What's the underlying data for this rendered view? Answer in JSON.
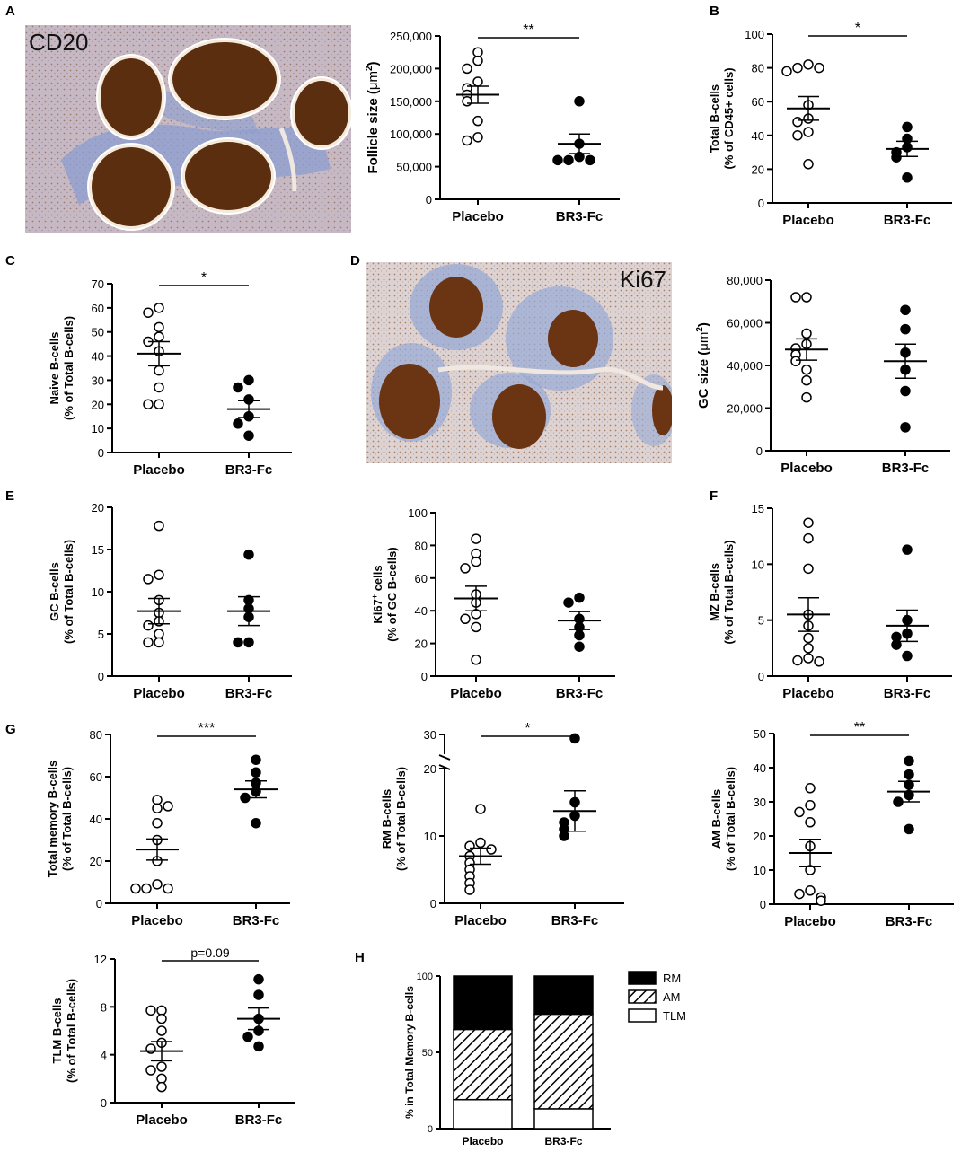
{
  "panel_labels": [
    "A",
    "B",
    "C",
    "D",
    "E",
    "F",
    "G",
    "H"
  ],
  "images": {
    "cd20": {
      "label": "CD20",
      "colors": {
        "background": "#c7b9c4",
        "stain": "#5a2e0e",
        "rim": "#f4eadc",
        "zone": "#8b9ed0"
      }
    },
    "ki67": {
      "label": "Ki67",
      "colors": {
        "background": "#ddd3d2",
        "stain": "#6b3412",
        "rim": "#f4eadc",
        "zone": "#97aad6"
      }
    }
  },
  "chart_data": [
    {
      "id": "follicle",
      "type": "scatter",
      "ylabel_main": "Follicle size (",
      "ylabel_unit": "μm",
      "ylabel_sup": "2",
      "ylabel_end": ")",
      "ylim": [
        0,
        250000
      ],
      "yticks": [
        "0",
        "50,000",
        "100,000",
        "150,000",
        "200,000",
        "250,000"
      ],
      "categories": [
        "Placebo",
        "BR3-Fc"
      ],
      "groups": [
        {
          "values": [
            225000,
            212000,
            200000,
            180000,
            170000,
            160000,
            150000,
            120000,
            95000,
            90000
          ],
          "mean": 160000,
          "sem": 13000,
          "marker": "open"
        },
        {
          "values": [
            150000,
            85000,
            65000,
            60000,
            60000,
            60000
          ],
          "mean": 85000,
          "sem": 15000,
          "marker": "filled"
        }
      ],
      "significance": "**"
    },
    {
      "id": "total-b",
      "type": "scatter",
      "ylabel_lines": [
        "Total B-cells",
        "(% of CD45+ cells)"
      ],
      "ylim": [
        0,
        100
      ],
      "yticks": [
        "0",
        "20",
        "40",
        "60",
        "80",
        "100"
      ],
      "categories": [
        "Placebo",
        "BR3-Fc"
      ],
      "groups": [
        {
          "values": [
            82,
            80,
            80,
            78,
            58,
            50,
            48,
            42,
            40,
            23
          ],
          "mean": 56,
          "sem": 7,
          "marker": "open"
        },
        {
          "values": [
            45,
            38,
            33,
            30,
            27,
            15
          ],
          "mean": 32,
          "sem": 4.5,
          "marker": "filled"
        }
      ],
      "significance": "*"
    },
    {
      "id": "naive-b",
      "type": "scatter",
      "ylabel_lines": [
        "Naive B-cells",
        "(% of Total B-cells)"
      ],
      "ylim": [
        0,
        70
      ],
      "yticks": [
        "0",
        "10",
        "20",
        "30",
        "40",
        "50",
        "60",
        "70"
      ],
      "categories": [
        "Placebo",
        "BR3-Fc"
      ],
      "groups": [
        {
          "values": [
            60,
            58,
            52,
            48,
            46,
            42,
            34,
            27,
            20,
            20
          ],
          "mean": 41,
          "sem": 5,
          "marker": "open"
        },
        {
          "values": [
            30,
            27,
            22,
            15,
            12,
            7
          ],
          "mean": 18,
          "sem": 3.5,
          "marker": "filled"
        }
      ],
      "significance": "*"
    },
    {
      "id": "gc-size",
      "type": "scatter",
      "ylabel_main": "GC size  (",
      "ylabel_unit": "μm",
      "ylabel_sup": "2",
      "ylabel_end": ")",
      "ylim": [
        0,
        80000
      ],
      "yticks": [
        "0",
        "20,000",
        "40,000",
        "60,000",
        "80,000"
      ],
      "categories": [
        "Placebo",
        "BR3-Fc"
      ],
      "groups": [
        {
          "values": [
            72000,
            72000,
            55000,
            50000,
            48000,
            45000,
            42000,
            38000,
            33000,
            25000
          ],
          "mean": 47500,
          "sem": 5000,
          "marker": "open"
        },
        {
          "values": [
            66000,
            57000,
            46000,
            38000,
            28000,
            11000
          ],
          "mean": 42000,
          "sem": 8000,
          "marker": "filled"
        }
      ],
      "significance": ""
    },
    {
      "id": "gc-b",
      "type": "scatter",
      "ylabel_lines": [
        "GC B-cells",
        "(% of Total B-cells)"
      ],
      "ylim": [
        0,
        20
      ],
      "yticks": [
        "0",
        "5",
        "10",
        "15",
        "20"
      ],
      "categories": [
        "Placebo",
        "BR3-Fc"
      ],
      "groups": [
        {
          "values": [
            17.8,
            12,
            11.5,
            9,
            7.5,
            6.5,
            6,
            5,
            4,
            4
          ],
          "mean": 7.7,
          "sem": 1.5,
          "marker": "open"
        },
        {
          "values": [
            14.4,
            9,
            8,
            7,
            4,
            4
          ],
          "mean": 7.7,
          "sem": 1.7,
          "marker": "filled"
        }
      ],
      "significance": ""
    },
    {
      "id": "ki67-cells",
      "type": "scatter",
      "ylabel_main": "Ki67",
      "ylabel_sup": "+",
      "ylabel_end": " cells",
      "ylabel_line2": "(% of GC B-cells)",
      "ylim": [
        0,
        100
      ],
      "yticks": [
        "0",
        "20",
        "40",
        "60",
        "80",
        "100"
      ],
      "categories": [
        "Placebo",
        "BR3-Fc"
      ],
      "groups": [
        {
          "values": [
            84,
            75,
            70,
            66,
            50,
            45,
            38,
            35,
            30,
            10
          ],
          "mean": 47.5,
          "sem": 7.5,
          "marker": "open"
        },
        {
          "values": [
            48,
            45,
            35,
            30,
            25,
            18
          ],
          "mean": 34,
          "sem": 5.5,
          "marker": "filled"
        }
      ],
      "significance": ""
    },
    {
      "id": "mz-b",
      "type": "scatter",
      "ylabel_lines": [
        "MZ B-cells",
        "(% of Total B-cells)"
      ],
      "ylim": [
        0,
        15
      ],
      "yticks": [
        "0",
        "5",
        "10",
        "15"
      ],
      "categories": [
        "Placebo",
        "BR3-Fc"
      ],
      "groups": [
        {
          "values": [
            13.7,
            12.3,
            9.6,
            5.5,
            4.5,
            3.4,
            2.5,
            1.6,
            1.4,
            1.3
          ],
          "mean": 5.5,
          "sem": 1.5,
          "marker": "open"
        },
        {
          "values": [
            11.3,
            5,
            3.8,
            3.5,
            2.8,
            1.8
          ],
          "mean": 4.5,
          "sem": 1.4,
          "marker": "filled"
        }
      ],
      "significance": ""
    },
    {
      "id": "total-memory",
      "type": "scatter",
      "ylabel_lines": [
        "Total memory B-cells",
        "(% of Total B-cells)"
      ],
      "ylim": [
        0,
        80
      ],
      "yticks": [
        "0",
        "20",
        "40",
        "60",
        "80"
      ],
      "categories": [
        "Placebo",
        "BR3-Fc"
      ],
      "groups": [
        {
          "values": [
            49,
            45,
            46,
            38,
            30,
            20,
            9,
            7,
            7,
            7
          ],
          "mean": 25.5,
          "sem": 5,
          "marker": "open"
        },
        {
          "values": [
            68,
            62,
            57,
            53,
            50,
            38
          ],
          "mean": 54,
          "sem": 4,
          "marker": "filled"
        }
      ],
      "significance": "***"
    },
    {
      "id": "rm-b",
      "type": "scatter",
      "ylabel_lines": [
        "RM B-cells",
        "(% of Total B-cells)"
      ],
      "y_broken": true,
      "ylim_low": [
        0,
        20
      ],
      "ylim_high": [
        20,
        30
      ],
      "yticks_low": [
        "0",
        "10",
        "20"
      ],
      "ytick_high": "30",
      "categories": [
        "Placebo",
        "BR3-Fc"
      ],
      "groups": [
        {
          "values": [
            14,
            9,
            8.5,
            8,
            7,
            6,
            5,
            4,
            3,
            2
          ],
          "mean": 7,
          "sem": 1.2,
          "marker": "open"
        },
        {
          "values": [
            28,
            15,
            13,
            12,
            11,
            10
          ],
          "mean": 13.7,
          "sem": 3,
          "marker": "filled"
        }
      ],
      "significance": "*"
    },
    {
      "id": "am-b",
      "type": "scatter",
      "ylabel_lines": [
        "AM B-cells",
        "(% of Total B-cells)"
      ],
      "ylim": [
        0,
        50
      ],
      "yticks": [
        "0",
        "10",
        "20",
        "30",
        "40",
        "50"
      ],
      "categories": [
        "Placebo",
        "BR3-Fc"
      ],
      "groups": [
        {
          "values": [
            34,
            29,
            27,
            24,
            17,
            10,
            4,
            3,
            2,
            1
          ],
          "mean": 15,
          "sem": 4,
          "marker": "open"
        },
        {
          "values": [
            42,
            38,
            35,
            32,
            30,
            22
          ],
          "mean": 33,
          "sem": 3,
          "marker": "filled"
        }
      ],
      "significance": "**"
    },
    {
      "id": "tlm-b",
      "type": "scatter",
      "ylabel_lines": [
        "TLM B-cells",
        "(% of Total B-cells)"
      ],
      "ylim": [
        0,
        12
      ],
      "yticks": [
        "0",
        "4",
        "8",
        "12"
      ],
      "categories": [
        "Placebo",
        "BR3-Fc"
      ],
      "groups": [
        {
          "values": [
            7.7,
            7.7,
            7,
            6,
            5,
            4.5,
            3,
            2.7,
            2,
            1.3
          ],
          "mean": 4.3,
          "sem": 0.8,
          "marker": "open"
        },
        {
          "values": [
            10.3,
            9,
            7,
            6,
            5.5,
            4.7
          ],
          "mean": 7,
          "sem": 0.9,
          "marker": "filled"
        }
      ],
      "significance": "p=0.09"
    },
    {
      "id": "memory-composition",
      "type": "bar",
      "stacked": true,
      "ylabel": "% in Total Memory B-cells",
      "ylim": [
        0,
        100
      ],
      "yticks": [
        "0",
        "50",
        "100"
      ],
      "categories": [
        "Placebo",
        "BR3-Fc"
      ],
      "series": [
        {
          "name": "TLM",
          "values": [
            19,
            13
          ],
          "fill": "white"
        },
        {
          "name": "AM",
          "values": [
            46,
            62
          ],
          "fill": "hatched"
        },
        {
          "name": "RM",
          "values": [
            35,
            25
          ],
          "fill": "black"
        }
      ],
      "legend": "right"
    }
  ]
}
